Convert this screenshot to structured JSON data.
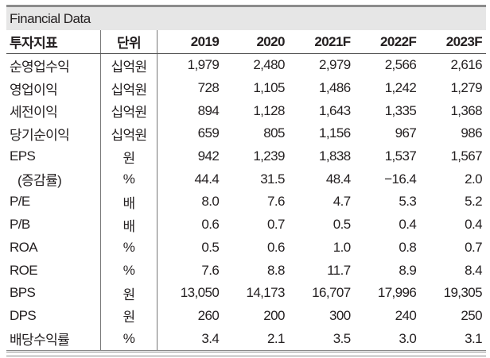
{
  "title": "Financial Data",
  "headers": [
    "투자지표",
    "단위",
    "2019",
    "2020",
    "2021F",
    "2022F",
    "2023F"
  ],
  "rows": [
    {
      "label": "순영업수익",
      "unit": "십억원",
      "values": [
        "1,979",
        "2,480",
        "2,979",
        "2,566",
        "2,616"
      ]
    },
    {
      "label": "영업이익",
      "unit": "십억원",
      "values": [
        "728",
        "1,105",
        "1,486",
        "1,242",
        "1,279"
      ]
    },
    {
      "label": "세전이익",
      "unit": "십억원",
      "values": [
        "894",
        "1,128",
        "1,643",
        "1,335",
        "1,368"
      ]
    },
    {
      "label": "당기순이익",
      "unit": "십억원",
      "values": [
        "659",
        "805",
        "1,156",
        "967",
        "986"
      ]
    },
    {
      "label": "EPS",
      "unit": "원",
      "values": [
        "942",
        "1,239",
        "1,838",
        "1,537",
        "1,567"
      ]
    },
    {
      "label": "(증감률)",
      "unit": "%",
      "values": [
        "44.4",
        "31.5",
        "48.4",
        "−16.4",
        "2.0"
      ]
    },
    {
      "label": "P/E",
      "unit": "배",
      "values": [
        "8.0",
        "7.6",
        "4.7",
        "5.3",
        "5.2"
      ]
    },
    {
      "label": "P/B",
      "unit": "배",
      "values": [
        "0.6",
        "0.7",
        "0.5",
        "0.4",
        "0.4"
      ]
    },
    {
      "label": "ROA",
      "unit": "%",
      "values": [
        "0.5",
        "0.6",
        "1.0",
        "0.8",
        "0.7"
      ]
    },
    {
      "label": "ROE",
      "unit": "%",
      "values": [
        "7.6",
        "8.8",
        "11.7",
        "8.9",
        "8.4"
      ]
    },
    {
      "label": "BPS",
      "unit": "원",
      "values": [
        "13,050",
        "14,173",
        "16,707",
        "17,996",
        "19,305"
      ]
    },
    {
      "label": "DPS",
      "unit": "원",
      "values": [
        "260",
        "200",
        "300",
        "240",
        "250"
      ]
    },
    {
      "label": "배당수익률",
      "unit": "%",
      "values": [
        "3.4",
        "2.1",
        "3.5",
        "3.0",
        "3.1"
      ]
    }
  ]
}
